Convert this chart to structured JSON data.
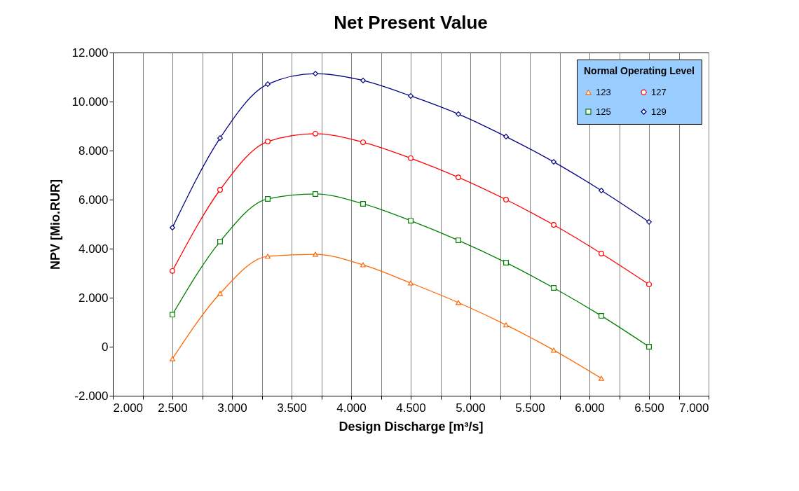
{
  "chart_data": {
    "type": "line",
    "title": "Net Present Value",
    "xlabel": "Design Discharge [m³/s]",
    "ylabel": "NPV [Mio.RUR]",
    "legend_title": "Normal Operating Level",
    "x": [
      2500,
      2900,
      3300,
      3700,
      4100,
      4500,
      4900,
      5300,
      5700,
      6100,
      6500
    ],
    "series": [
      {
        "name": "123",
        "color": "#ff6600",
        "marker": "triangle",
        "values": [
          -490,
          2170,
          3690,
          3770,
          3340,
          2600,
          1800,
          890,
          -140,
          -1290,
          null
        ]
      },
      {
        "name": "125",
        "color": "#008000",
        "marker": "square",
        "values": [
          1310,
          4290,
          6030,
          6230,
          5830,
          5140,
          4340,
          3430,
          2400,
          1260,
          0
        ]
      },
      {
        "name": "127",
        "color": "#ff0000",
        "marker": "circle",
        "values": [
          3090,
          6400,
          8370,
          8690,
          8340,
          7690,
          6910,
          6000,
          4970,
          3800,
          2540
        ]
      },
      {
        "name": "129",
        "color": "#000080",
        "marker": "diamond",
        "values": [
          4860,
          8510,
          10710,
          11140,
          10860,
          10230,
          9490,
          8570,
          7540,
          6370,
          5090
        ]
      }
    ],
    "xlim": [
      2000,
      7000
    ],
    "xticks": [
      {
        "value": 2000,
        "label": "2.000"
      },
      {
        "value": 2250,
        "label": null
      },
      {
        "value": 2500,
        "label": "2.500"
      },
      {
        "value": 2750,
        "label": null
      },
      {
        "value": 3000,
        "label": "3.000"
      },
      {
        "value": 3250,
        "label": null
      },
      {
        "value": 3500,
        "label": "3.500"
      },
      {
        "value": 3750,
        "label": null
      },
      {
        "value": 4000,
        "label": "4.000"
      },
      {
        "value": 4250,
        "label": null
      },
      {
        "value": 4500,
        "label": "4.500"
      },
      {
        "value": 4750,
        "label": null
      },
      {
        "value": 5000,
        "label": "5.000"
      },
      {
        "value": 5250,
        "label": null
      },
      {
        "value": 5500,
        "label": "5.500"
      },
      {
        "value": 5750,
        "label": null
      },
      {
        "value": 6000,
        "label": "6.000"
      },
      {
        "value": 6250,
        "label": null
      },
      {
        "value": 6500,
        "label": "6.500"
      },
      {
        "value": 6750,
        "label": null
      },
      {
        "value": 7000,
        "label": "7.000"
      }
    ],
    "ylim": [
      -2000,
      12000
    ],
    "yticks": [
      {
        "value": -2000,
        "label": "-2.000"
      },
      0,
      {
        "value": 2000,
        "label": "2.000"
      },
      {
        "value": 4000,
        "label": "4.000"
      },
      {
        "value": 6000,
        "label": "6.000"
      },
      {
        "value": 8000,
        "label": "8.000"
      },
      {
        "value": 10000,
        "label": "10.000"
      },
      {
        "value": 12000,
        "label": "12.000"
      }
    ],
    "grid": "x",
    "legend": "top right",
    "line_style": "solid"
  }
}
